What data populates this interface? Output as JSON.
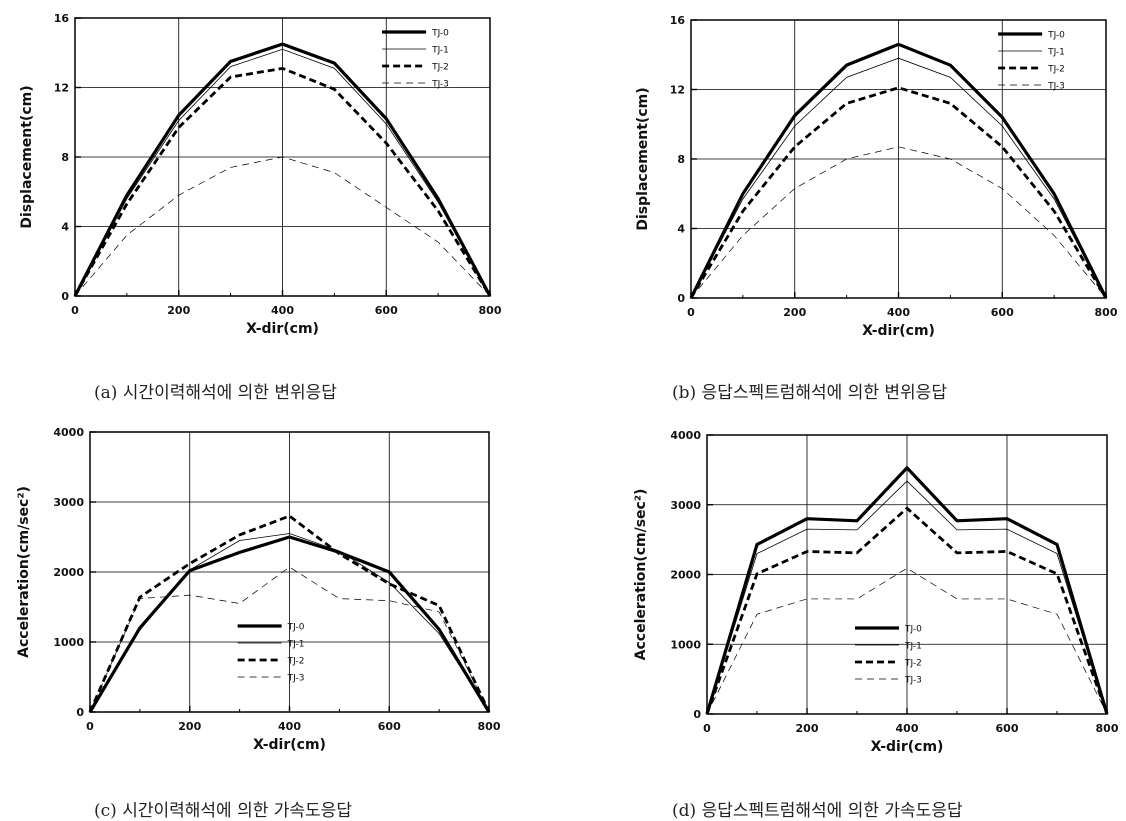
{
  "chart_data": [
    {
      "type": "line",
      "caption": "(a) 시간이력해석에 의한 변위응답",
      "xlabel": "X-dir(cm)",
      "ylabel": "Displacement(cm)",
      "xlim": [
        0,
        800
      ],
      "ylim": [
        0,
        16
      ],
      "xticks": [
        "0",
        "200",
        "400",
        "600",
        "800"
      ],
      "yticks": [
        "0",
        "4",
        "8",
        "12",
        "16"
      ],
      "grid": true,
      "legend_position": "top-right",
      "x": [
        0,
        100,
        200,
        300,
        400,
        500,
        600,
        700,
        800
      ],
      "series": [
        {
          "name": "TJ-0",
          "values": [
            0,
            5.8,
            10.4,
            13.5,
            14.5,
            13.4,
            10.2,
            5.6,
            0
          ]
        },
        {
          "name": "TJ-1",
          "values": [
            0,
            5.6,
            10.1,
            13.2,
            14.2,
            13.1,
            9.9,
            5.4,
            0
          ]
        },
        {
          "name": "TJ-2",
          "values": [
            0,
            5.3,
            9.7,
            12.6,
            13.1,
            11.9,
            8.8,
            4.9,
            0
          ]
        },
        {
          "name": "TJ-3",
          "values": [
            0,
            3.5,
            5.8,
            7.4,
            8.0,
            7.1,
            5.1,
            3.1,
            0
          ]
        }
      ]
    },
    {
      "type": "line",
      "caption": "(b) 응답스펙트럼해석에 의한 변위응답",
      "xlabel": "X-dir(cm)",
      "ylabel": "Displacement(cm)",
      "xlim": [
        0,
        800
      ],
      "ylim": [
        0,
        16
      ],
      "xticks": [
        "0",
        "200",
        "400",
        "600",
        "800"
      ],
      "yticks": [
        "0",
        "4",
        "8",
        "12",
        "16"
      ],
      "grid": true,
      "legend_position": "top-right",
      "x": [
        0,
        100,
        200,
        300,
        400,
        500,
        600,
        700,
        800
      ],
      "series": [
        {
          "name": "TJ-0",
          "values": [
            0,
            6.0,
            10.5,
            13.4,
            14.6,
            13.4,
            10.4,
            6.0,
            0
          ]
        },
        {
          "name": "TJ-1",
          "values": [
            0,
            5.7,
            9.9,
            12.7,
            13.8,
            12.7,
            9.9,
            5.7,
            0
          ]
        },
        {
          "name": "TJ-2",
          "values": [
            0,
            5.0,
            8.7,
            11.2,
            12.1,
            11.2,
            8.7,
            5.0,
            0
          ]
        },
        {
          "name": "TJ-3",
          "values": [
            0,
            3.6,
            6.3,
            8.0,
            8.7,
            8.0,
            6.3,
            3.6,
            0
          ]
        }
      ]
    },
    {
      "type": "line",
      "caption": "(c) 시간이력해석에 의한 가속도응답",
      "xlabel": "X-dir(cm)",
      "ylabel": "Acceleration(cm/sec²)",
      "xlim": [
        0,
        800
      ],
      "ylim": [
        0,
        4000
      ],
      "xticks": [
        "0",
        "200",
        "400",
        "600",
        "800"
      ],
      "yticks": [
        "0",
        "1000",
        "2000",
        "3000",
        "4000"
      ],
      "grid": true,
      "legend_position": "bottom-center",
      "x": [
        0,
        100,
        200,
        300,
        400,
        500,
        600,
        700,
        800
      ],
      "series": [
        {
          "name": "TJ-0",
          "values": [
            0,
            1200,
            2020,
            2280,
            2500,
            2280,
            2000,
            1180,
            0
          ]
        },
        {
          "name": "TJ-1",
          "values": [
            0,
            1170,
            2030,
            2450,
            2550,
            2300,
            1850,
            1120,
            0
          ]
        },
        {
          "name": "TJ-2",
          "values": [
            0,
            1640,
            2120,
            2530,
            2800,
            2260,
            1830,
            1520,
            0
          ]
        },
        {
          "name": "TJ-3",
          "values": [
            0,
            1620,
            1670,
            1550,
            2070,
            1620,
            1590,
            1430,
            0
          ]
        }
      ]
    },
    {
      "type": "line",
      "caption": "(d) 응답스펙트럼해석에 의한 가속도응답",
      "xlabel": "X-dir(cm)",
      "ylabel": "Acceleration(cm/sec²)",
      "xlim": [
        0,
        800
      ],
      "ylim": [
        0,
        4000
      ],
      "xticks": [
        "0",
        "200",
        "400",
        "600",
        "800"
      ],
      "yticks": [
        "0",
        "1000",
        "2000",
        "3000",
        "4000"
      ],
      "grid": true,
      "legend_position": "bottom-center",
      "x": [
        0,
        100,
        200,
        300,
        400,
        500,
        600,
        700,
        800
      ],
      "series": [
        {
          "name": "TJ-0",
          "values": [
            0,
            2430,
            2800,
            2770,
            3530,
            2770,
            2800,
            2430,
            0
          ]
        },
        {
          "name": "TJ-1",
          "values": [
            0,
            2300,
            2650,
            2640,
            3340,
            2640,
            2650,
            2300,
            0
          ]
        },
        {
          "name": "TJ-2",
          "values": [
            0,
            2010,
            2330,
            2310,
            2950,
            2310,
            2330,
            2010,
            0
          ]
        },
        {
          "name": "TJ-3",
          "values": [
            0,
            1430,
            1650,
            1650,
            2090,
            1650,
            1650,
            1430,
            0
          ]
        }
      ]
    }
  ]
}
